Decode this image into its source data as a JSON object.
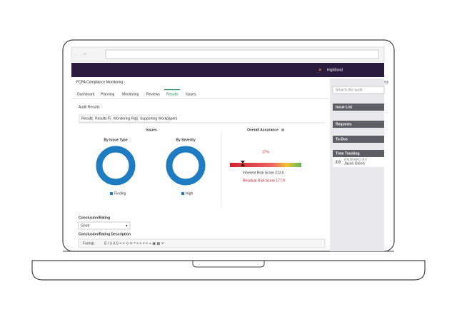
{
  "app": {
    "title": "FCPA Compliance Monitoring -",
    "progress": "Progress",
    "logo": "HighBond",
    "search_placeholder": "Search this audit"
  },
  "tabs": [
    "Dashboard",
    "Planning",
    "Monitoring",
    "Reviews",
    "Results",
    "Issues"
  ],
  "section_title": "Audit Results",
  "subtabs": [
    "Results",
    "Results Files",
    "Monitoring Reports",
    "Supporting Workpapers"
  ],
  "issues": {
    "title": "Issues",
    "by_type": {
      "title": "By Issue Type",
      "legend": "Finding"
    },
    "by_severity": {
      "title": "By Severity",
      "legend": "High"
    }
  },
  "assurance": {
    "title": "Overall Assurance",
    "percent": "17%",
    "inherent": "Inherent Risk Score 213.0",
    "residual": "Residual Risk Score 177.0"
  },
  "conclusion": {
    "label": "Conclusion/Rating",
    "value": "Good",
    "description_label": "Conclusion/Rating Description",
    "format": "Format"
  },
  "sidebar": {
    "items": [
      "Issue List",
      "Requests",
      "To-Dos",
      "Time Tracking"
    ],
    "hours": "2.0",
    "entered_by": "ENTERED BY",
    "user": "Jason Green"
  }
}
